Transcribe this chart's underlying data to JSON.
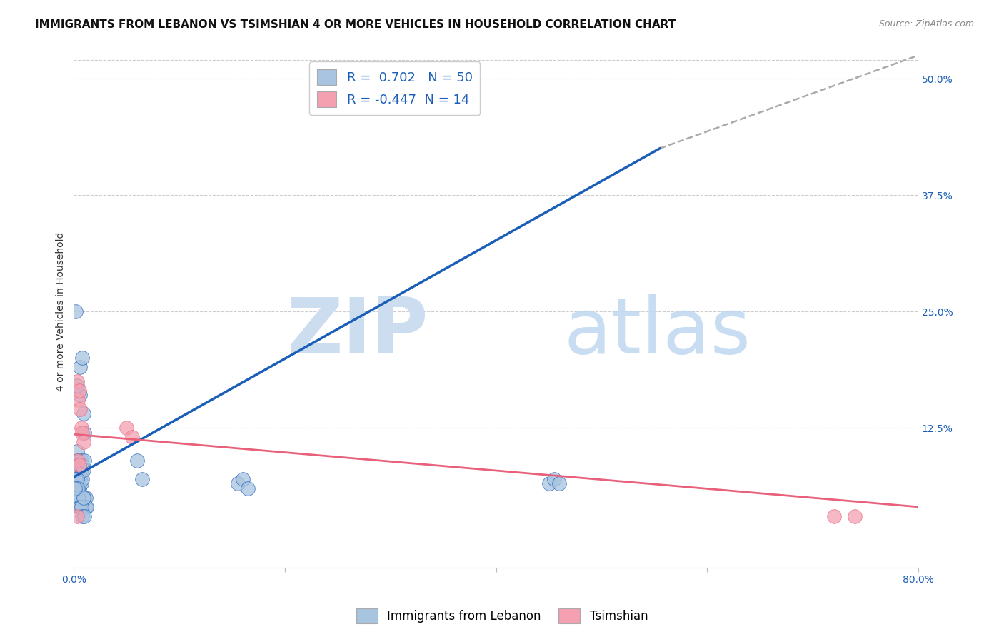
{
  "title": "IMMIGRANTS FROM LEBANON VS TSIMSHIAN 4 OR MORE VEHICLES IN HOUSEHOLD CORRELATION CHART",
  "source": "Source: ZipAtlas.com",
  "ylabel": "4 or more Vehicles in Household",
  "blue_R": 0.702,
  "blue_N": 50,
  "pink_R": -0.447,
  "pink_N": 14,
  "blue_color": "#a8c4e0",
  "pink_color": "#f4a0b0",
  "blue_line_color": "#1a5eb8",
  "pink_line_color": "#e8607a",
  "legend_blue_label": "Immigrants from Lebanon",
  "legend_pink_label": "Tsimshian",
  "xlim": [
    0.0,
    0.8
  ],
  "ylim": [
    -0.025,
    0.525
  ],
  "ytick_values": [
    0.0,
    0.125,
    0.25,
    0.375,
    0.5
  ],
  "ytick_labels": [
    "",
    "12.5%",
    "25.0%",
    "37.5%",
    "50.0%"
  ],
  "xtick_values": [
    0.0,
    0.2,
    0.4,
    0.6,
    0.8
  ],
  "xtick_labels": [
    "0.0%",
    "",
    "",
    "",
    "80.0%"
  ],
  "blue_scatter_x": [
    0.002,
    0.003,
    0.003,
    0.004,
    0.004,
    0.005,
    0.005,
    0.005,
    0.006,
    0.006,
    0.006,
    0.007,
    0.007,
    0.007,
    0.008,
    0.008,
    0.008,
    0.009,
    0.009,
    0.01,
    0.01,
    0.01,
    0.011,
    0.011,
    0.012,
    0.001,
    0.001,
    0.002,
    0.002,
    0.003,
    0.003,
    0.004,
    0.004,
    0.005,
    0.006,
    0.007,
    0.008,
    0.009,
    0.01,
    0.002,
    0.003,
    0.06,
    0.065,
    0.155,
    0.16,
    0.165,
    0.45,
    0.455,
    0.46,
    0.001
  ],
  "blue_scatter_y": [
    0.08,
    0.09,
    0.1,
    0.09,
    0.08,
    0.085,
    0.07,
    0.06,
    0.19,
    0.16,
    0.08,
    0.075,
    0.065,
    0.09,
    0.2,
    0.07,
    0.085,
    0.14,
    0.08,
    0.12,
    0.05,
    0.09,
    0.04,
    0.05,
    0.04,
    0.05,
    0.06,
    0.06,
    0.07,
    0.06,
    0.07,
    0.06,
    0.05,
    0.04,
    0.04,
    0.04,
    0.03,
    0.05,
    0.03,
    0.25,
    0.17,
    0.09,
    0.07,
    0.065,
    0.07,
    0.06,
    0.065,
    0.07,
    0.065,
    0.06
  ],
  "pink_scatter_x": [
    0.003,
    0.004,
    0.004,
    0.005,
    0.005,
    0.006,
    0.007,
    0.008,
    0.009,
    0.05,
    0.055,
    0.72,
    0.74,
    0.003
  ],
  "pink_scatter_y": [
    0.175,
    0.155,
    0.09,
    0.165,
    0.085,
    0.145,
    0.125,
    0.12,
    0.11,
    0.125,
    0.115,
    0.03,
    0.03,
    0.03
  ],
  "blue_line_x0": 0.0,
  "blue_line_x1": 0.555,
  "blue_line_y0": 0.072,
  "blue_line_y1": 0.425,
  "dash_line_x0": 0.555,
  "dash_line_x1": 0.8,
  "dash_line_y0": 0.425,
  "dash_line_y1": 0.525,
  "pink_line_x0": 0.0,
  "pink_line_x1": 0.8,
  "pink_line_y0": 0.118,
  "pink_line_y1": 0.04,
  "grid_color": "#cccccc",
  "background_color": "#ffffff",
  "title_fontsize": 11,
  "source_fontsize": 9,
  "axis_label_fontsize": 10,
  "tick_fontsize": 10,
  "legend_fontsize": 13
}
